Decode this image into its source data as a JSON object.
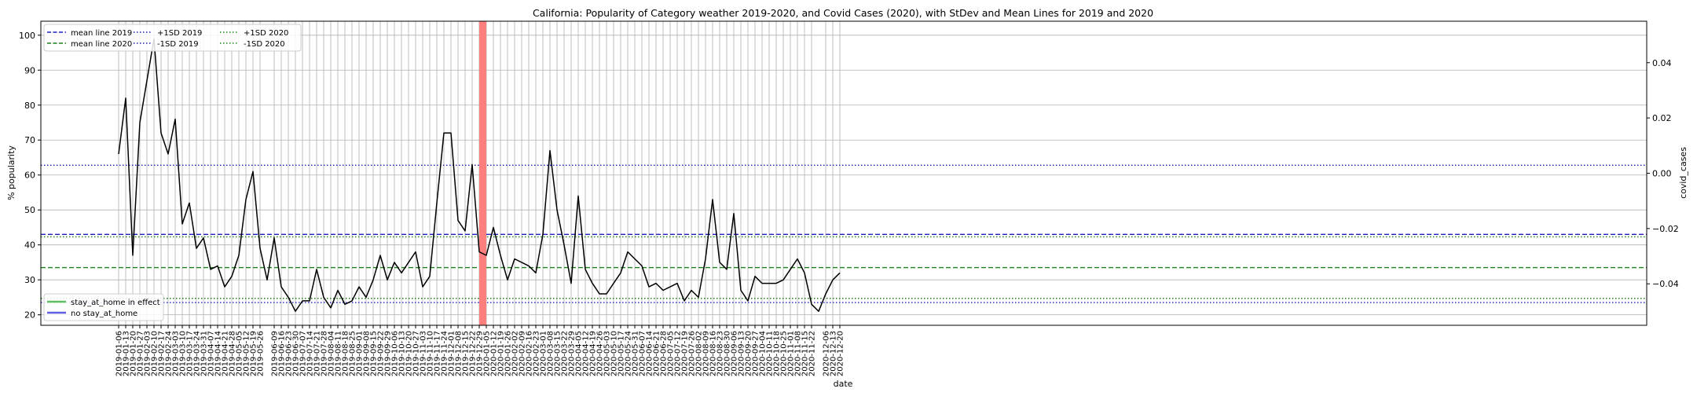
{
  "chart_data": {
    "type": "line",
    "title": "California: Popularity of Category weather 2019-2020, and Covid Cases (2020), with StDev and Mean Lines for 2019 and 2020",
    "xlabel": "date",
    "ylabel": "% popularity",
    "y2label": "covid_cases",
    "ylim": [
      17,
      104
    ],
    "y_ticks": [
      20,
      30,
      40,
      50,
      60,
      70,
      80,
      90,
      100
    ],
    "y2lim": [
      -0.055,
      0.055
    ],
    "y2_ticks": [
      -0.04,
      -0.02,
      0.0,
      0.02,
      0.04
    ],
    "y2_tick_labels": [
      "−0.04",
      "−0.02",
      "0.00",
      "0.02",
      "0.04"
    ],
    "grid": true,
    "x_start": "2019-01-06",
    "x": [
      "2019-01-06",
      "2019-01-13",
      "2019-01-20",
      "2019-01-27",
      "2019-02-03",
      "2019-02-10",
      "2019-02-17",
      "2019-02-24",
      "2019-03-03",
      "2019-03-10",
      "2019-03-17",
      "2019-03-24",
      "2019-03-31",
      "2019-04-07",
      "2019-04-14",
      "2019-04-21",
      "2019-04-28",
      "2019-05-05",
      "2019-05-12",
      "2019-05-19",
      "2019-05-26",
      "2019-06-02",
      "2019-06-09",
      "2019-06-16",
      "2019-06-23",
      "2019-06-30",
      "2019-07-07",
      "2019-07-14",
      "2019-07-21",
      "2019-07-28",
      "2019-08-04",
      "2019-08-11",
      "2019-08-18",
      "2019-08-25",
      "2019-09-01",
      "2019-09-08",
      "2019-09-15",
      "2019-09-22",
      "2019-09-29",
      "2019-10-06",
      "2019-10-13",
      "2019-10-20",
      "2019-10-27",
      "2019-11-03",
      "2019-11-10",
      "2019-11-17",
      "2019-11-24",
      "2019-12-01",
      "2019-12-08",
      "2019-12-15",
      "2019-12-22",
      "2019-12-29",
      "2020-01-05",
      "2020-01-12",
      "2020-01-19",
      "2020-01-26",
      "2020-02-02",
      "2020-02-09",
      "2020-02-16",
      "2020-02-23",
      "2020-03-01",
      "2020-03-08",
      "2020-03-15",
      "2020-03-22",
      "2020-03-29",
      "2020-04-05",
      "2020-04-12",
      "2020-04-19",
      "2020-04-26",
      "2020-05-03",
      "2020-05-10",
      "2020-05-17",
      "2020-05-24",
      "2020-05-31",
      "2020-06-07",
      "2020-06-14",
      "2020-06-21",
      "2020-06-28",
      "2020-07-05",
      "2020-07-12",
      "2020-07-19",
      "2020-07-26",
      "2020-08-02",
      "2020-08-09",
      "2020-08-16",
      "2020-08-23",
      "2020-08-30",
      "2020-09-06",
      "2020-09-13",
      "2020-09-20",
      "2020-09-27",
      "2020-10-04",
      "2020-10-11",
      "2020-10-18",
      "2020-10-25",
      "2020-11-01",
      "2020-11-08",
      "2020-11-15",
      "2020-11-22",
      "2020-11-29",
      "2020-12-06",
      "2020-12-13",
      "2020-12-20"
    ],
    "x_tick_labels": [
      "2019-01-06",
      "2019-01-13",
      "2019-01-20",
      "2019-01-27",
      "2019-02-03",
      "2019-02-10",
      "2019-02-17",
      "2019-02-24",
      "2019-03-03",
      "2019-03-10",
      "2019-03-17",
      "2019-03-24",
      "2019-03-31",
      "2019-04-07",
      "2019-04-14",
      "2019-04-21",
      "2019-04-28",
      "2019-05-05",
      "2019-05-12",
      "2019-05-19",
      "2019-05-26",
      "2019-06-09",
      "2019-06-16",
      "2019-06-23",
      "2019-06-30",
      "2019-07-07",
      "2019-07-14",
      "2019-07-21",
      "2019-07-28",
      "2019-08-04",
      "2019-08-11",
      "2019-08-18",
      "2019-08-25",
      "2019-09-01",
      "2019-09-08",
      "2019-09-15",
      "2019-09-22",
      "2019-09-29",
      "2019-10-06",
      "2019-10-13",
      "2019-10-20",
      "2019-10-27",
      "2019-11-03",
      "2019-11-10",
      "2019-11-17",
      "2019-11-24",
      "2019-12-01",
      "2019-12-08",
      "2019-12-15",
      "2019-12-22",
      "2019-12-29",
      "2020-01-05",
      "2020-01-12",
      "2020-01-19",
      "2020-01-26",
      "2020-02-02",
      "2020-02-09",
      "2020-02-16",
      "2020-02-23",
      "2020-03-01",
      "2020-03-08",
      "2020-03-15",
      "2020-03-22",
      "2020-03-29",
      "2020-04-05",
      "2020-04-12",
      "2020-04-19",
      "2020-04-26",
      "2020-05-03",
      "2020-05-10",
      "2020-05-17",
      "2020-05-24",
      "2020-05-31",
      "2020-06-07",
      "2020-06-14",
      "2020-06-21",
      "2020-06-28",
      "2020-07-05",
      "2020-07-12",
      "2020-07-19",
      "2020-07-26",
      "2020-08-02",
      "2020-08-09",
      "2020-08-16",
      "2020-08-23",
      "2020-08-30",
      "2020-09-06",
      "2020-09-13",
      "2020-09-20",
      "2020-09-27",
      "2020-10-04",
      "2020-10-11",
      "2020-10-18",
      "2020-10-25",
      "2020-11-01",
      "2020-11-08",
      "2020-11-15",
      "2020-11-22",
      "2020-12-06",
      "2020-12-13",
      "2020-12-20"
    ],
    "series": [
      {
        "values": [
          66,
          82,
          37,
          75,
          87,
          99,
          72,
          66,
          76,
          46,
          52,
          39,
          42,
          33,
          34,
          28,
          31,
          37,
          53,
          61,
          39,
          30,
          42,
          28,
          25,
          21,
          24,
          24,
          33,
          25,
          22,
          27,
          23,
          24,
          28,
          25,
          30,
          37,
          30,
          35,
          32,
          35,
          38,
          28,
          31,
          52,
          72,
          72,
          47,
          44,
          63,
          38,
          37,
          45,
          37,
          30,
          36,
          35,
          34,
          32,
          43,
          67,
          50,
          40,
          29,
          54,
          33,
          29,
          26,
          26,
          29,
          32,
          38,
          36,
          34,
          28,
          29,
          27,
          28,
          29,
          24,
          27,
          25,
          36,
          53,
          35,
          33,
          49,
          27,
          24,
          31,
          29,
          29,
          29,
          30,
          33,
          36,
          32,
          23,
          21,
          26,
          30,
          32
        ],
        "color": "#000000"
      }
    ],
    "reference_lines": [
      {
        "name": "mean line 2019",
        "value": 43,
        "color": "#1f1fbf",
        "style": "dashed"
      },
      {
        "name": "mean line 2020",
        "value": 33.5,
        "color": "#1a801a",
        "style": "dashed"
      },
      {
        "name": "+1SD 2019",
        "value": 62.8,
        "color": "#1f1fbf",
        "style": "dotted"
      },
      {
        "name": "-1SD 2019",
        "value": 23.5,
        "color": "#1f1fbf",
        "style": "dotted"
      },
      {
        "name": "+1SD 2020",
        "value": 42.3,
        "color": "#1a801a",
        "style": "dotted"
      },
      {
        "name": "-1SD 2020",
        "value": 24.7,
        "color": "#1a801a",
        "style": "dotted"
      }
    ],
    "shaded_span": {
      "start": "2019-12-29",
      "end": "2020-01-05",
      "color": "#ff7f7f"
    },
    "legend": {
      "placement": "top-left",
      "entries": [
        "mean line 2019",
        "mean line 2020",
        "+1SD 2019",
        "-1SD 2019",
        "+1SD 2020",
        "-1SD 2020"
      ]
    },
    "legend_secondary": {
      "placement": "bottom-left",
      "entries": [
        {
          "name": "stay_at_home in effect",
          "color": "#5fbf5f"
        },
        {
          "name": "no stay_at_home",
          "color": "#5f5fdf"
        }
      ]
    }
  }
}
